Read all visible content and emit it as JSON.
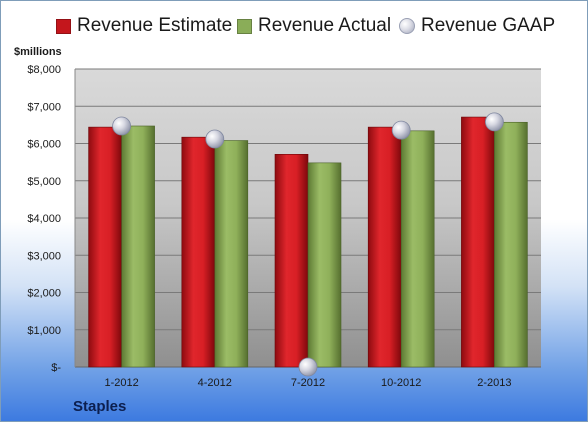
{
  "legend": {
    "estimate_label": "Revenue Estimate",
    "actual_label": "Revenue Actual",
    "gaap_label": "Revenue GAAP"
  },
  "unit_label": "$millions",
  "brand": "Staples",
  "colors": {
    "estimate": "#c4161c",
    "actual": "#7f9f4f",
    "gaap": "#c9cbd6"
  },
  "chart_data": {
    "type": "bar",
    "categories": [
      "1-2012",
      "4-2012",
      "7-2012",
      "10-2012",
      "2-2013"
    ],
    "series": [
      {
        "name": "Revenue Estimate",
        "values": [
          6440,
          6170,
          5710,
          6440,
          6710
        ]
      },
      {
        "name": "Revenue Actual",
        "values": [
          6470,
          6080,
          5480,
          6340,
          6570
        ]
      },
      {
        "name": "Revenue GAAP",
        "marker": "circle",
        "values": [
          6470,
          6120,
          0,
          6360,
          6580
        ]
      }
    ],
    "yticks": [
      "$-",
      "$1,000",
      "$2,000",
      "$3,000",
      "$4,000",
      "$5,000",
      "$6,000",
      "$7,000",
      "$8,000"
    ],
    "ylim": [
      0,
      8000
    ],
    "ylabel": "$millions",
    "grid": true,
    "legend_position": "top"
  }
}
